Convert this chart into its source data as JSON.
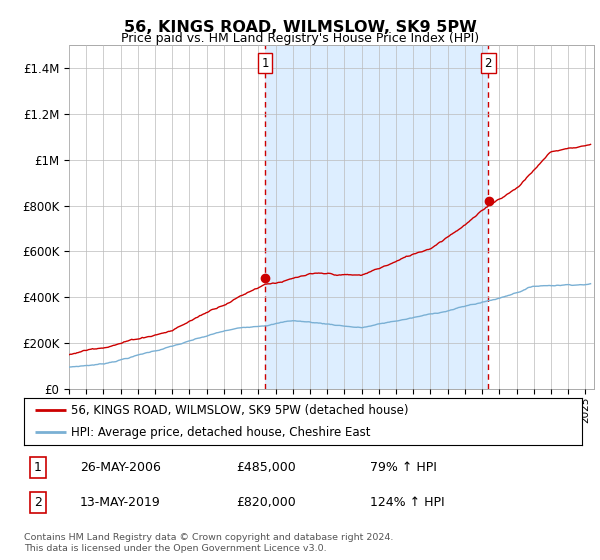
{
  "title": "56, KINGS ROAD, WILMSLOW, SK9 5PW",
  "subtitle": "Price paid vs. HM Land Registry's House Price Index (HPI)",
  "ylabel_ticks": [
    "£0",
    "£200K",
    "£400K",
    "£600K",
    "£800K",
    "£1M",
    "£1.2M",
    "£1.4M"
  ],
  "ylim_max": 1500000,
  "xlim_start": 1995.0,
  "xlim_end": 2025.5,
  "sale1_date": 2006.39,
  "sale1_price": 485000,
  "sale1_label": "1",
  "sale2_date": 2019.36,
  "sale2_price": 820000,
  "sale2_label": "2",
  "red_color": "#cc0000",
  "blue_color": "#7ab0d4",
  "fill_color": "#ddeeff",
  "dashed_color": "#cc0000",
  "legend_line1": "56, KINGS ROAD, WILMSLOW, SK9 5PW (detached house)",
  "legend_line2": "HPI: Average price, detached house, Cheshire East",
  "table_row1_num": "1",
  "table_row1_date": "26-MAY-2006",
  "table_row1_price": "£485,000",
  "table_row1_hpi": "79% ↑ HPI",
  "table_row2_num": "2",
  "table_row2_date": "13-MAY-2019",
  "table_row2_price": "£820,000",
  "table_row2_hpi": "124% ↑ HPI",
  "footnote1": "Contains HM Land Registry data © Crown copyright and database right 2024.",
  "footnote2": "This data is licensed under the Open Government Licence v3.0.",
  "background_color": "#ffffff",
  "grid_color": "#bbbbbb"
}
